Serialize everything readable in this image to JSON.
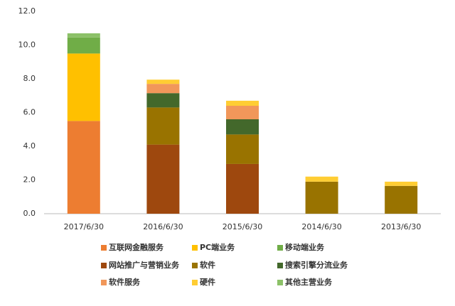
{
  "chart_data": {
    "type": "stacked_bar",
    "categories": [
      "2017/6/30",
      "2016/6/30",
      "2015/6/30",
      "2014/6/30",
      "2013/6/30"
    ],
    "series": [
      {
        "name": "互联网金融服务",
        "color": "#ED7D31",
        "values": [
          5.5,
          null,
          null,
          null,
          null
        ]
      },
      {
        "name": "PC端业务",
        "color": "#FFC000",
        "values": [
          4.0,
          null,
          null,
          null,
          null
        ]
      },
      {
        "name": "移动端业务",
        "color": "#70AD47",
        "values": [
          0.95,
          null,
          null,
          null,
          null
        ]
      },
      {
        "name": "网站推广与营销业务",
        "color": "#9E480E",
        "values": [
          null,
          4.1,
          2.95,
          null,
          null
        ]
      },
      {
        "name": "软件",
        "color": "#997300",
        "values": [
          null,
          2.2,
          1.75,
          1.9,
          1.65
        ]
      },
      {
        "name": "搜索引擎分流业务",
        "color": "#43682B",
        "values": [
          null,
          0.85,
          0.9,
          null,
          null
        ]
      },
      {
        "name": "软件服务",
        "color": "#F1975A",
        "values": [
          null,
          0.55,
          0.8,
          null,
          null
        ]
      },
      {
        "name": "硬件",
        "color": "#FFCD33",
        "values": [
          null,
          0.25,
          0.3,
          0.3,
          0.25
        ]
      },
      {
        "name": "其他主营业务",
        "color": "#8CC168",
        "values": [
          0.25,
          null,
          null,
          null,
          null
        ]
      }
    ],
    "ylim": [
      0,
      12
    ],
    "yticks": [
      {
        "value": 0,
        "label": "0.0"
      },
      {
        "value": 2,
        "label": "2.0"
      },
      {
        "value": 4,
        "label": "4.0"
      },
      {
        "value": 6,
        "label": "6.0"
      },
      {
        "value": 8,
        "label": "8.0"
      },
      {
        "value": 10,
        "label": "10.0"
      },
      {
        "value": 12,
        "label": "12.0"
      }
    ],
    "legend": "bottom"
  }
}
